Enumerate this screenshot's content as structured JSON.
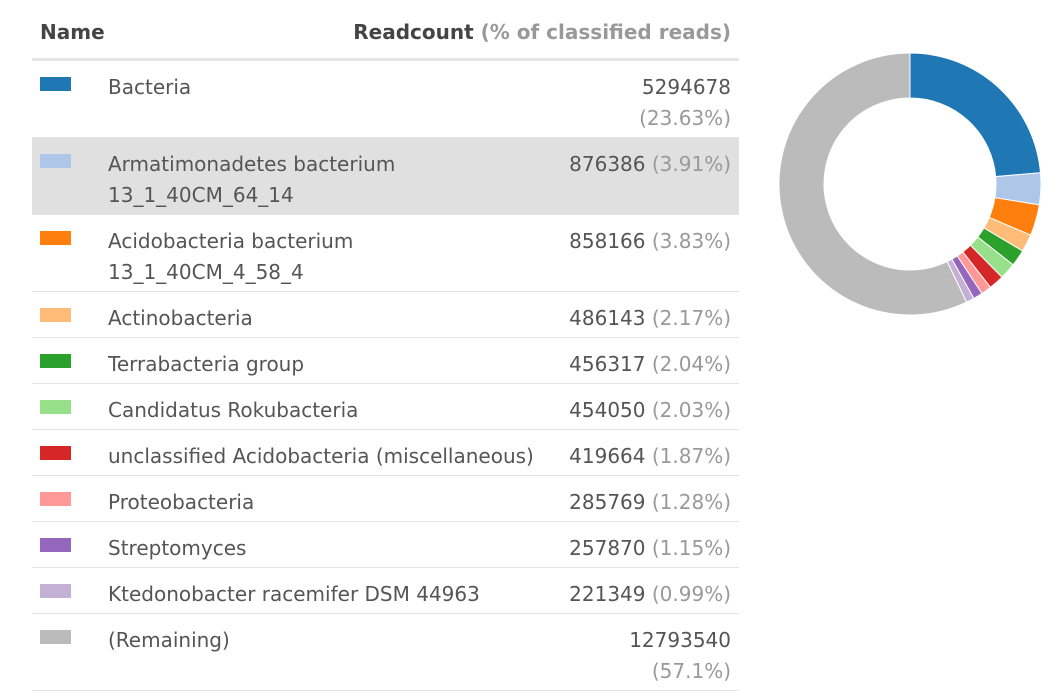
{
  "table": {
    "header_name": "Name",
    "header_count": "Readcount",
    "header_pct": "(% of classified reads)"
  },
  "chart_data": {
    "type": "pie",
    "style": "donut",
    "categories": [
      "Bacteria",
      "Armatimonadetes bacterium 13_1_40CM_64_14",
      "Acidobacteria bacterium 13_1_40CM_4_58_4",
      "Actinobacteria",
      "Terrabacteria group",
      "Candidatus Rokubacteria",
      "unclassified Acidobacteria (miscellaneous)",
      "Proteobacteria",
      "Streptomyces",
      "Ktedonobacter racemifer DSM 44963",
      "(Remaining)"
    ],
    "values": [
      5294678,
      876386,
      858166,
      486143,
      456317,
      454050,
      419664,
      285769,
      257870,
      221349,
      12793540
    ],
    "percents": [
      "(23.63%)",
      "(3.91%)",
      "(3.83%)",
      "(2.17%)",
      "(2.04%)",
      "(2.03%)",
      "(1.87%)",
      "(1.28%)",
      "(1.15%)",
      "(0.99%)",
      "(57.1%)"
    ],
    "colors": [
      "#1f77b4",
      "#aec7e8",
      "#ff7f0e",
      "#ffbb78",
      "#2ca02c",
      "#98df8a",
      "#d62728",
      "#ff9896",
      "#9467bd",
      "#c5b0d5",
      "#bbbbbb"
    ],
    "highlighted": 1
  }
}
